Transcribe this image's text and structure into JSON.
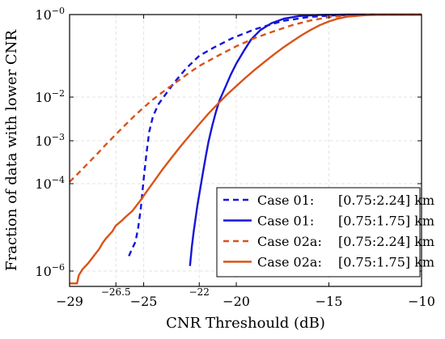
{
  "chart_data": {
    "type": "line",
    "xlabel": "CNR Threshould (dB)",
    "ylabel": "Fraction of data with lower CNR",
    "xlim": [
      -29,
      -10
    ],
    "grid": true,
    "legend_placement": "bottom-right",
    "x_ticks": [
      {
        "value": -29,
        "label": "−29"
      },
      {
        "value": -25,
        "label": "−25"
      },
      {
        "value": -20,
        "label": "−20"
      },
      {
        "value": -15,
        "label": "−15"
      },
      {
        "value": -10,
        "label": "−10"
      }
    ],
    "x_extra_ticks": [
      {
        "value": -26.5,
        "label": "−26.5"
      },
      {
        "value": -22,
        "label": "−22"
      }
    ],
    "y_ticks": [
      {
        "value": 1,
        "base": "10",
        "exp": "−0"
      },
      {
        "value": 0.01,
        "base": "10",
        "exp": "−2"
      },
      {
        "value": 0.001,
        "base": "10",
        "exp": "−3"
      },
      {
        "value": 0.0001,
        "base": "10",
        "exp": "−4"
      },
      {
        "value": 1e-06,
        "base": "10",
        "exp": "−6"
      }
    ],
    "series": [
      {
        "name": "Case 01:",
        "range": "[0.75:2.24] km",
        "color": "#1515d8",
        "dash": true,
        "x": [
          -25.8,
          -25.6,
          -25.45,
          -25.3,
          -25.15,
          -25.0,
          -24.85,
          -24.7,
          -24.5,
          -24.2,
          -23.8,
          -23.3,
          -22.7,
          -22.0,
          -21.2,
          -20.2,
          -19.0,
          -17.5,
          -16.0,
          -14.5,
          -13.0,
          -10.0
        ],
        "y": [
          2.2e-06,
          3.4e-06,
          4.6e-06,
          9.5e-06,
          2.8e-05,
          0.00013,
          0.0005,
          0.0016,
          0.0036,
          0.0069,
          0.012,
          0.024,
          0.05,
          0.1,
          0.16,
          0.27,
          0.44,
          0.7,
          0.88,
          0.97,
          0.995,
          1.0
        ]
      },
      {
        "name": "Case 01:",
        "range": "[0.75:1.75] km",
        "color": "#1515d8",
        "dash": false,
        "x": [
          -22.5,
          -22.4,
          -22.3,
          -22.2,
          -22.1,
          -21.95,
          -21.8,
          -21.65,
          -21.5,
          -21.3,
          -21.1,
          -20.9,
          -20.6,
          -20.3,
          -20.0,
          -19.6,
          -19.2,
          -18.7,
          -18.1,
          -17.4,
          -16.6,
          -15.5,
          -14.0,
          -10.0
        ],
        "y": [
          1.3e-06,
          3.6e-06,
          8e-06,
          1.6e-05,
          3.2e-05,
          7.5e-05,
          0.00018,
          0.00043,
          0.00095,
          0.0022,
          0.0046,
          0.0085,
          0.017,
          0.035,
          0.065,
          0.13,
          0.25,
          0.42,
          0.62,
          0.8,
          0.92,
          0.98,
          0.998,
          1.0
        ]
      },
      {
        "name": "Case 02a:",
        "range": "[0.75:2.24] km",
        "color": "#d95319",
        "dash": true,
        "x": [
          -29.0,
          -28.5,
          -28.0,
          -27.5,
          -27.0,
          -26.5,
          -26.0,
          -25.5,
          -25.0,
          -24.5,
          -24.0,
          -23.5,
          -23.0,
          -22.5,
          -22.0,
          -21.0,
          -20.0,
          -19.0,
          -18.0,
          -17.0,
          -16.0,
          -15.0,
          -14.0,
          -13.0,
          -12.0,
          -10.0
        ],
        "y": [
          0.00011,
          0.00018,
          0.0003,
          0.0005,
          0.00085,
          0.0014,
          0.0023,
          0.0037,
          0.0058,
          0.0088,
          0.013,
          0.019,
          0.0275,
          0.04,
          0.057,
          0.1,
          0.17,
          0.27,
          0.39,
          0.55,
          0.72,
          0.86,
          0.95,
          0.99,
          1.0,
          1.0
        ]
      },
      {
        "name": "Case 02a:",
        "range": "[0.75:1.75] km",
        "color": "#d95319",
        "dash": false,
        "x": [
          -29.0,
          -28.6,
          -28.5,
          -28.3,
          -28.0,
          -27.7,
          -27.4,
          -27.2,
          -27.0,
          -26.7,
          -26.5,
          -26.2,
          -26.0,
          -25.6,
          -25.2,
          -24.8,
          -24.4,
          -24.0,
          -23.5,
          -23.0,
          -22.5,
          -22.0,
          -21.5,
          -21.0,
          -20.5,
          -20.0,
          -19.5,
          -19.0,
          -18.5,
          -18.0,
          -17.5,
          -17.0,
          -16.5,
          -16.0,
          -15.5,
          -15.0,
          -14.5,
          -14.0,
          -13.0,
          -12.0,
          -10.0
        ],
        "y": [
          5.2e-07,
          5.2e-07,
          8e-07,
          1.1e-06,
          1.5e-06,
          2.2e-06,
          3.2e-06,
          4.5e-06,
          5.8e-06,
          8e-06,
          1.1e-05,
          1.4e-05,
          1.7e-05,
          2.4e-05,
          4e-05,
          7e-05,
          0.00012,
          0.00021,
          0.0004,
          0.00075,
          0.00135,
          0.0024,
          0.0042,
          0.007,
          0.0115,
          0.0185,
          0.0295,
          0.046,
          0.07,
          0.105,
          0.155,
          0.22,
          0.31,
          0.42,
          0.55,
          0.68,
          0.8,
          0.89,
          0.97,
          0.995,
          1.0
        ]
      }
    ]
  }
}
